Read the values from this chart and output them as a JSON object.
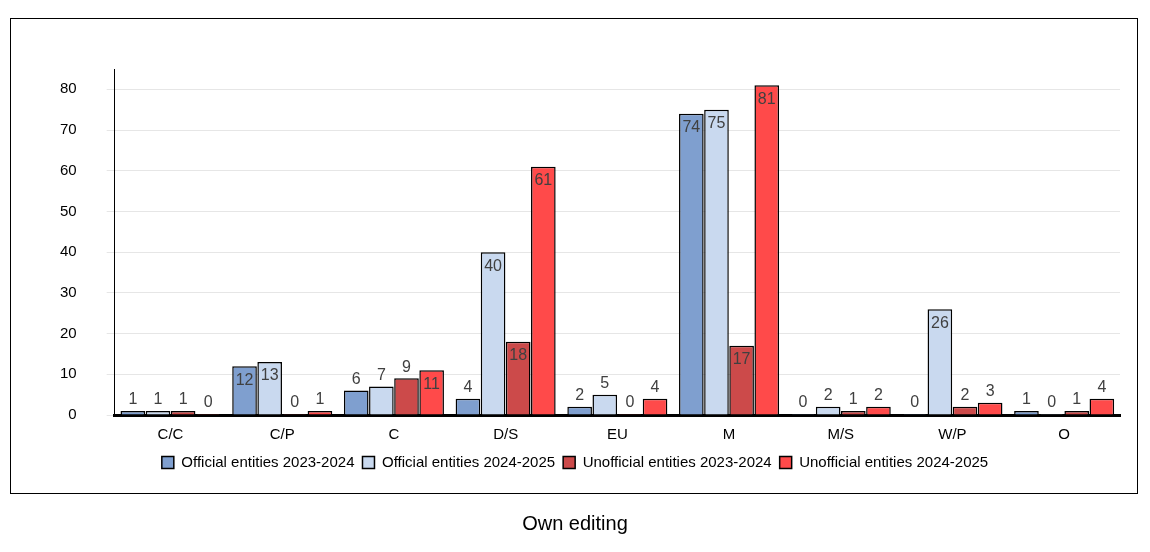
{
  "chart_data": {
    "type": "bar",
    "categories": [
      "C/C",
      "C/P",
      "C",
      "D/S",
      "EU",
      "M",
      "M/S",
      "W/P",
      "O"
    ],
    "series": [
      {
        "name": "Official entities 2023-2024",
        "color": "#7f9fcf",
        "values": [
          1,
          12,
          6,
          4,
          2,
          74,
          0,
          0,
          1
        ]
      },
      {
        "name": "Official entities 2024-2025",
        "color": "#c9d9ef",
        "values": [
          1,
          13,
          7,
          40,
          5,
          75,
          2,
          26,
          0
        ]
      },
      {
        "name": "Unofficial entities 2023-2024",
        "color": "#cc4a4a",
        "values": [
          1,
          0,
          9,
          18,
          0,
          17,
          1,
          2,
          1
        ]
      },
      {
        "name": "Unofficial entities 2024-2025",
        "color": "#ff4a4a",
        "values": [
          0,
          1,
          11,
          61,
          4,
          81,
          2,
          3,
          4
        ]
      }
    ],
    "ylim": [
      0,
      85
    ],
    "yticks": [
      0,
      10,
      20,
      30,
      40,
      50,
      60,
      70,
      80
    ],
    "grid": "y",
    "legend": "bottom",
    "data_labels": true,
    "annotations": [
      "Own editing"
    ]
  }
}
